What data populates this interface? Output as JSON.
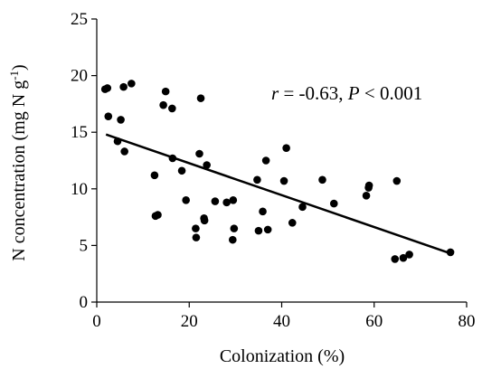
{
  "chart_data": {
    "type": "scatter",
    "xlabel": "Colonization (%)",
    "ylabel": {
      "main": "N concentration (mg N g",
      "sup": "-1",
      "close": ")"
    },
    "xlim": [
      0,
      80
    ],
    "ylim": [
      0,
      25
    ],
    "xticks": [
      0,
      20,
      40,
      60,
      80
    ],
    "yticks": [
      0,
      5,
      10,
      15,
      20,
      25
    ],
    "annotation": {
      "r_symbol": "r",
      "r_text": " = -0.63, ",
      "p_symbol": "P",
      "p_text": " < 0.001"
    },
    "trendline": {
      "x": [
        2,
        76.5
      ],
      "y": [
        14.8,
        4.3
      ]
    },
    "series": [
      {
        "points": [
          [
            1.8,
            18.8
          ],
          [
            2.3,
            18.9
          ],
          [
            2.5,
            16.4
          ],
          [
            4.5,
            14.2
          ],
          [
            5.2,
            16.1
          ],
          [
            5.8,
            19.0
          ],
          [
            6.0,
            13.3
          ],
          [
            7.5,
            19.3
          ],
          [
            12.5,
            11.2
          ],
          [
            12.7,
            7.6
          ],
          [
            13.2,
            7.7
          ],
          [
            14.4,
            17.4
          ],
          [
            14.9,
            18.6
          ],
          [
            16.3,
            17.1
          ],
          [
            16.4,
            12.7
          ],
          [
            18.4,
            11.6
          ],
          [
            19.3,
            9.0
          ],
          [
            21.4,
            6.5
          ],
          [
            21.5,
            5.7
          ],
          [
            22.2,
            13.1
          ],
          [
            22.5,
            18.0
          ],
          [
            23.2,
            7.4
          ],
          [
            23.3,
            7.2
          ],
          [
            23.8,
            12.1
          ],
          [
            25.6,
            8.9
          ],
          [
            28.1,
            8.8
          ],
          [
            29.4,
            5.5
          ],
          [
            29.5,
            9.0
          ],
          [
            29.7,
            6.5
          ],
          [
            34.7,
            10.8
          ],
          [
            35.0,
            6.3
          ],
          [
            35.9,
            8.0
          ],
          [
            36.6,
            12.5
          ],
          [
            37.0,
            6.4
          ],
          [
            40.5,
            10.7
          ],
          [
            41.0,
            13.6
          ],
          [
            42.3,
            7.0
          ],
          [
            44.5,
            8.4
          ],
          [
            48.8,
            10.8
          ],
          [
            51.3,
            8.7
          ],
          [
            58.3,
            9.4
          ],
          [
            58.8,
            10.1
          ],
          [
            58.9,
            10.3
          ],
          [
            64.5,
            3.8
          ],
          [
            64.9,
            10.7
          ],
          [
            66.3,
            3.9
          ],
          [
            67.6,
            4.2
          ],
          [
            76.5,
            4.4
          ]
        ]
      }
    ]
  }
}
